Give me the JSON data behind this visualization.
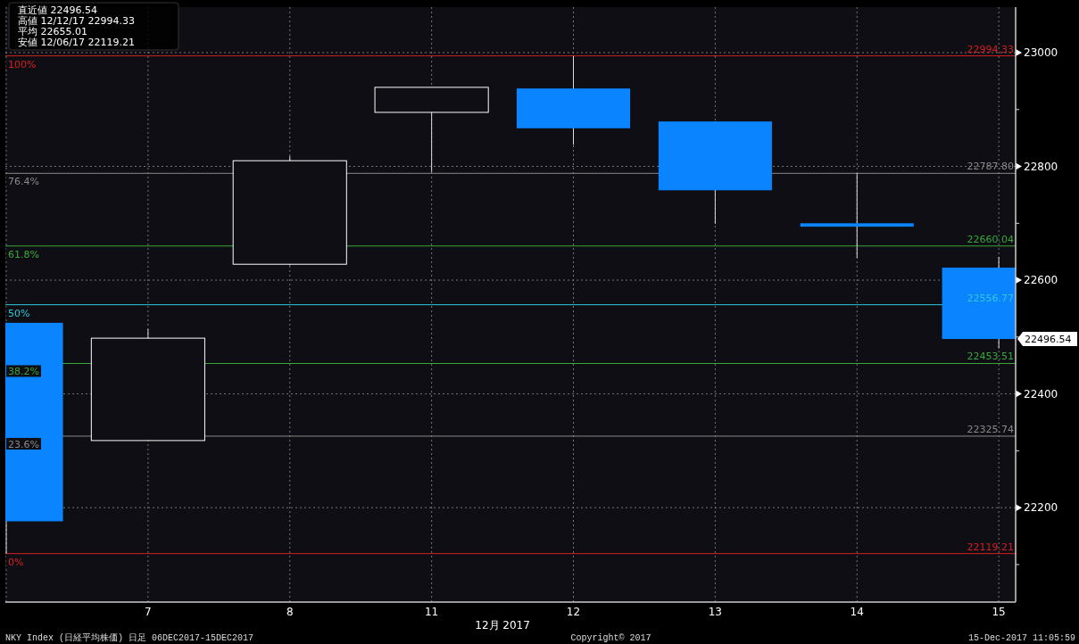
{
  "chart_data": {
    "type": "candlestick",
    "categories": [
      null,
      "7",
      "8",
      "11",
      "12",
      "13",
      "14",
      "15"
    ],
    "ohlc": [
      [
        22525,
        22525,
        22119.21,
        22176
      ],
      [
        22318,
        22514,
        22318,
        22498
      ],
      [
        22628,
        22818,
        22626,
        22810
      ],
      [
        22895,
        22939,
        22790,
        22939
      ],
      [
        22937,
        22994.33,
        22838,
        22867
      ],
      [
        22879,
        22879,
        22699,
        22758
      ],
      [
        22700,
        22788,
        22639,
        22694
      ],
      [
        22622,
        22641,
        22480,
        22496.54
      ]
    ],
    "colors": [
      "#0a84ff",
      "#ffffff",
      "#ffffff",
      "#ffffff",
      "#0a84ff",
      "#0a84ff",
      "#0a84ff",
      "#0a84ff"
    ],
    "ylim": [
      22034,
      23080
    ],
    "yticks": [
      {
        "value": 22100,
        "label": null
      },
      22200,
      {
        "value": 22300,
        "label": null
      },
      22400,
      {
        "value": 22500,
        "label": null
      },
      22600,
      {
        "value": 22700,
        "label": null
      },
      22800,
      {
        "value": 22900,
        "label": null
      },
      23000
    ],
    "xlabel": "12月 2017",
    "grid": true,
    "ref_lines": [
      {
        "axis": "y",
        "value": 22994.33,
        "label": "22994.33",
        "color": "#d42020"
      },
      {
        "axis": "y",
        "value": 22787.8,
        "label": "22787.80",
        "color": "#8a8a8a"
      },
      {
        "axis": "y",
        "value": 22660.04,
        "label": "22660.04",
        "color": "#3aa83a"
      },
      {
        "axis": "y",
        "value": 22556.77,
        "label": "22556.77",
        "color": "#30c8d8"
      },
      {
        "axis": "y",
        "value": 22453.51,
        "label": "22453.51",
        "color": "#3aa83a"
      },
      {
        "axis": "y",
        "value": 22325.74,
        "label": "22325.74",
        "color": "#8a8a8a"
      },
      {
        "axis": "y",
        "value": 22119.21,
        "label": "22119.21",
        "color": "#d42020"
      }
    ],
    "annotations": [
      "直近値 22496.54",
      "高値 12/12/17 22994.33",
      "平均 22655.01",
      "安値 12/06/17 22119.21",
      "NKY Index (日経平均株価)  日足 06DEC2017-15DEC2017",
      "Copyright© 2017",
      "15-Dec-2017 11:05:59",
      {
        "text": "22496.54",
        "x": "15",
        "y": 22496.54
      },
      {
        "text": "100%",
        "y": 22994.33
      },
      {
        "text": "76.4%",
        "y": 22787.8
      },
      {
        "text": "61.8%",
        "y": 22660.04
      },
      {
        "text": "50%",
        "y": 22556.77
      },
      {
        "text": "38.2%",
        "y": 22453.51
      },
      {
        "text": "23.6%",
        "y": 22325.74
      },
      {
        "text": "0%",
        "y": 22119.21
      }
    ]
  }
}
